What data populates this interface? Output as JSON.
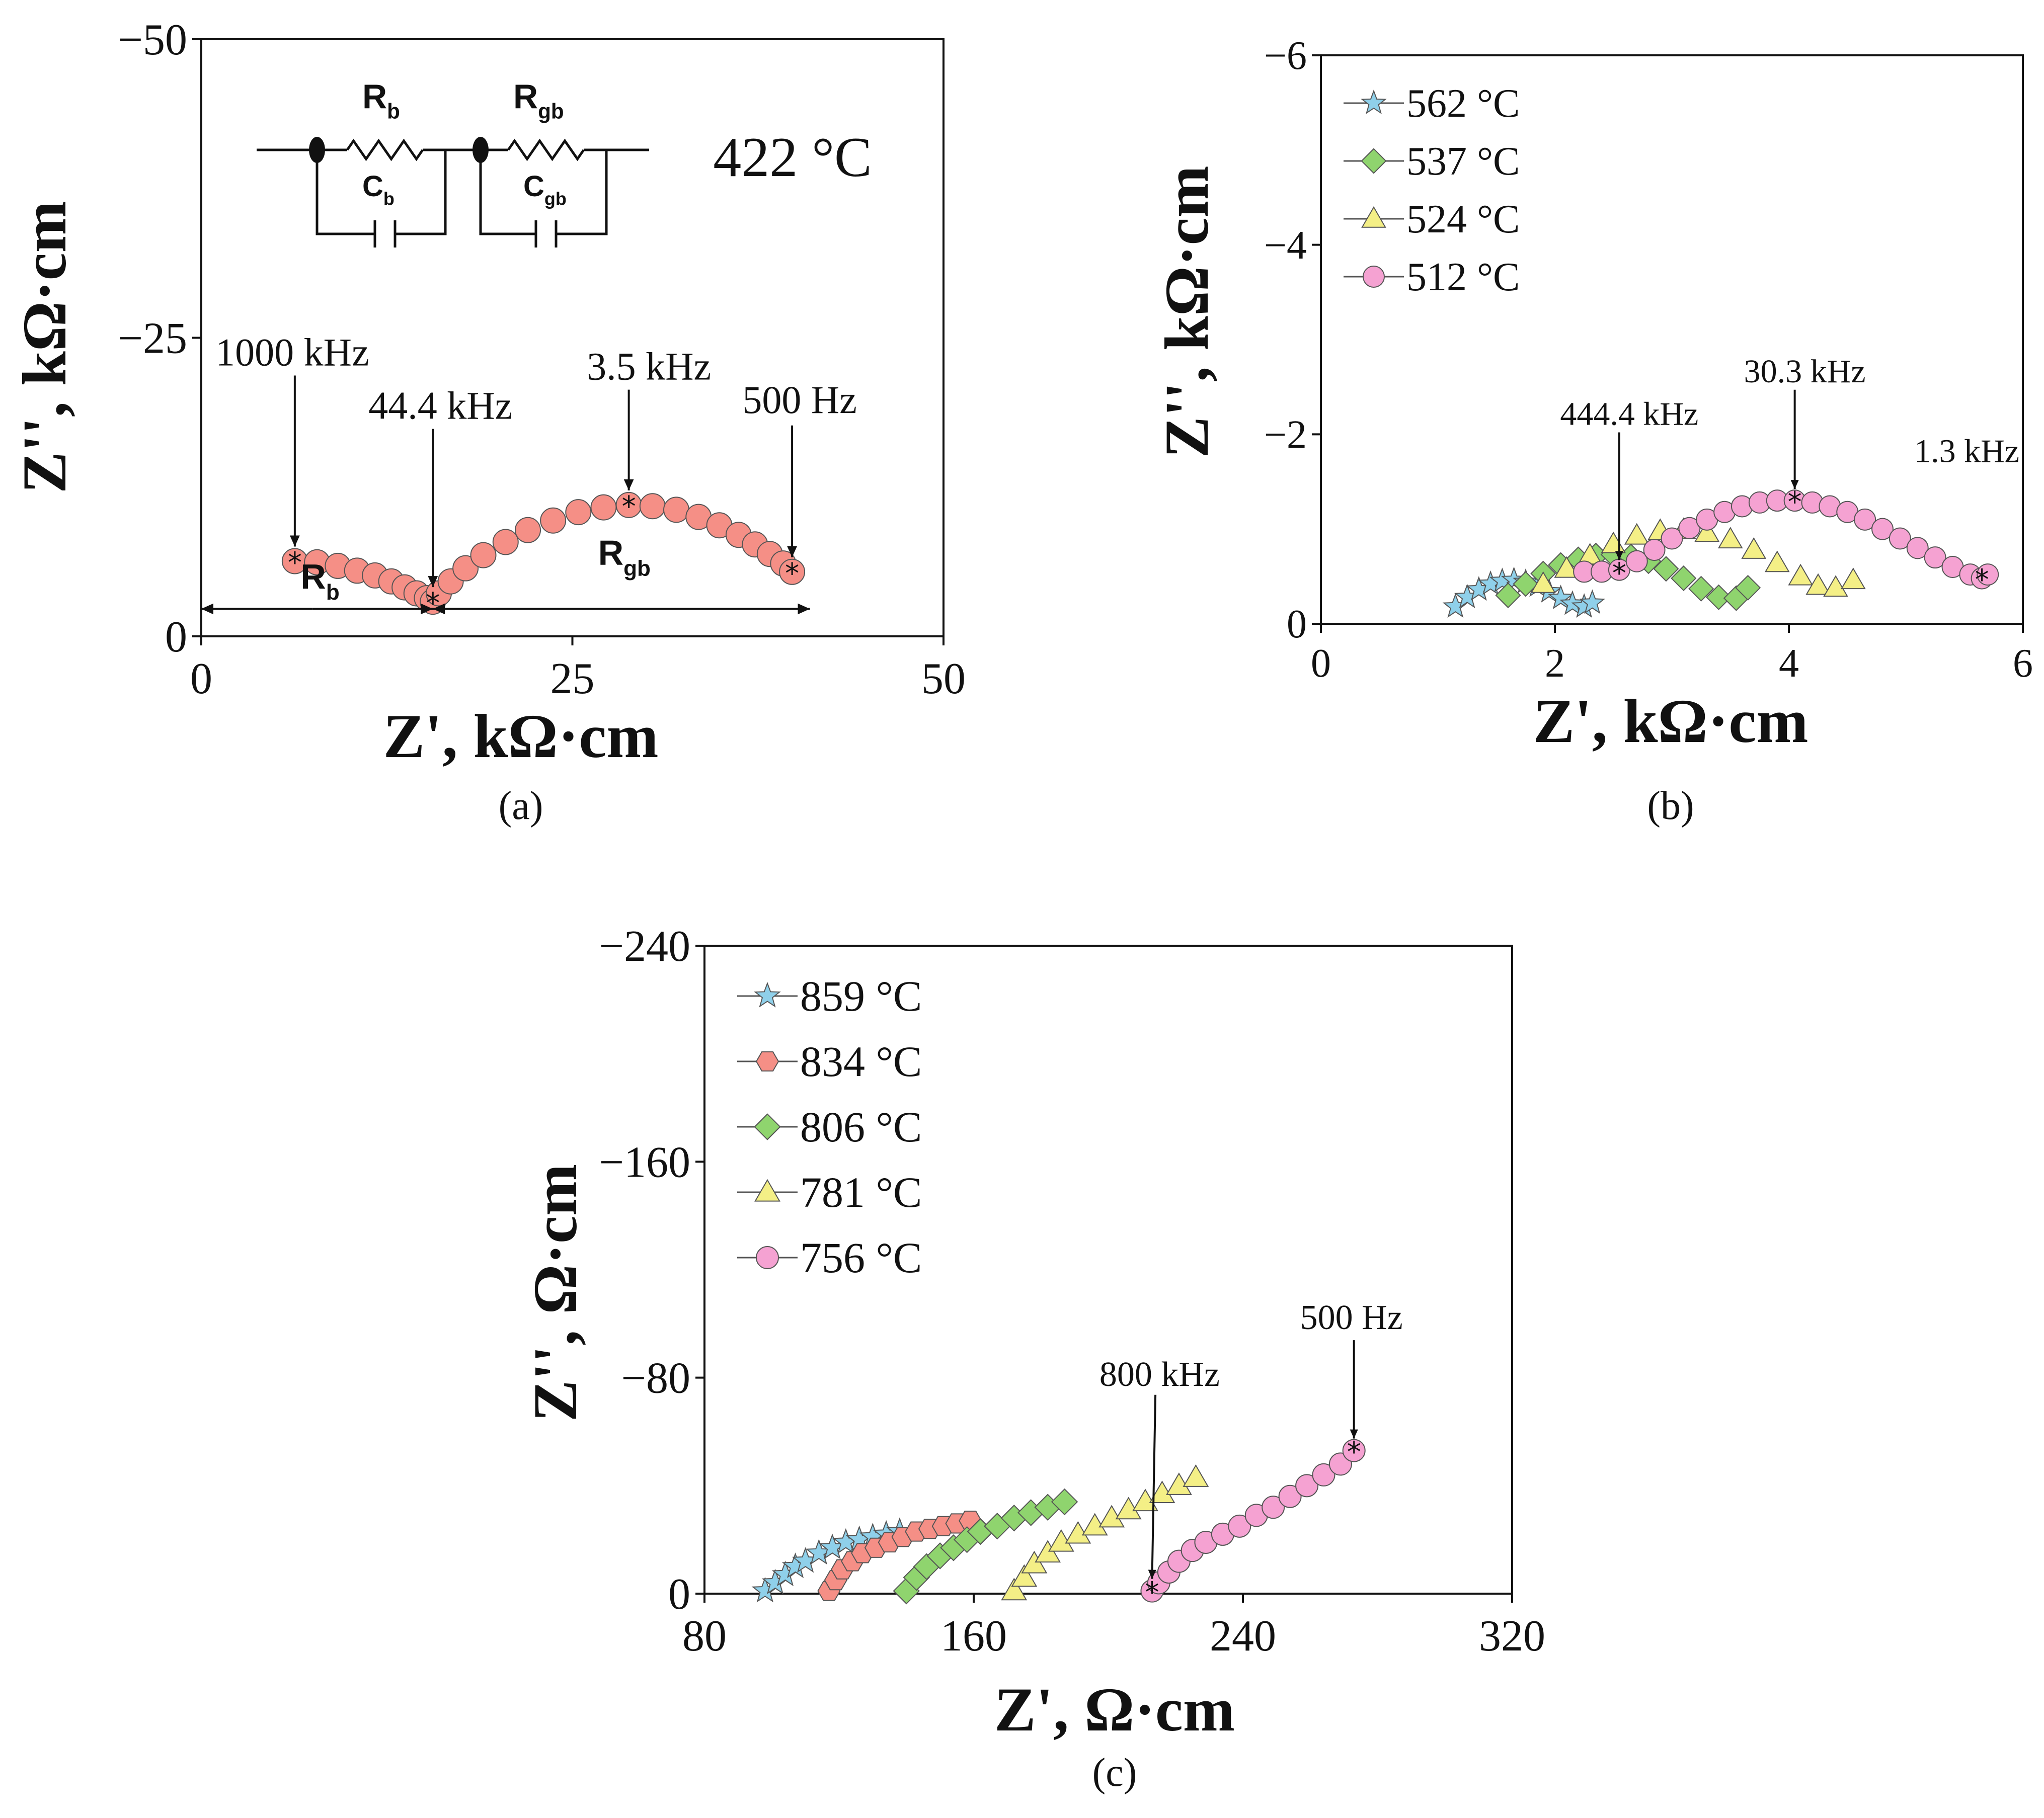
{
  "chart_data": [
    {
      "id": "a",
      "type": "scatter",
      "panel_label": "(a)",
      "xlabel": "Z', kΩ·cm",
      "ylabel": "Z'', kΩ·cm",
      "xlim": [
        0,
        50
      ],
      "ylim": [
        0,
        -50
      ],
      "xticks": [
        "0",
        "25",
        "50"
      ],
      "yticks": [
        "0",
        "−25",
        "−50"
      ],
      "temperature_label": "422 °C",
      "circuit": {
        "r_bulk": "R",
        "r_bulk_sub": "b",
        "c_bulk": "C",
        "c_bulk_sub": "b",
        "r_gb": "R",
        "r_gb_sub": "gb",
        "c_gb": "C",
        "c_gb_sub": "gb"
      },
      "region_labels": [
        {
          "text": "R",
          "sub": "b",
          "x": 8,
          "y": -4
        },
        {
          "text": "R",
          "sub": "gb",
          "x": 28.5,
          "y": -6
        }
      ],
      "series": [
        {
          "name": "422 °C",
          "color": "#f58f86",
          "marker": "circle",
          "x": [
            6.3,
            7.8,
            9.2,
            10.5,
            11.7,
            12.8,
            13.7,
            14.5,
            15.2,
            15.6,
            16.0,
            16.8,
            17.8,
            19.0,
            20.5,
            22.0,
            23.7,
            25.4,
            27.1,
            28.8,
            30.4,
            32.0,
            33.5,
            34.9,
            36.2,
            37.3,
            38.3,
            39.2,
            39.8
          ],
          "y": [
            -6.3,
            -6.2,
            -5.9,
            -5.5,
            -5.1,
            -4.6,
            -4.1,
            -3.6,
            -3.2,
            -2.9,
            -3.6,
            -4.6,
            -5.7,
            -6.8,
            -7.9,
            -8.9,
            -9.7,
            -10.4,
            -10.8,
            -11.0,
            -10.9,
            -10.6,
            -10.0,
            -9.3,
            -8.5,
            -7.7,
            -6.9,
            -6.1,
            -5.4
          ]
        }
      ],
      "annotations": [
        {
          "text": "1000 kHz",
          "x": 6.3,
          "y": -6.3
        },
        {
          "text": "44.4 kHz",
          "x": 15.6,
          "y": -2.9
        },
        {
          "text": "3.5 kHz",
          "x": 28.8,
          "y": -11.0
        },
        {
          "text": "500 Hz",
          "x": 39.8,
          "y": -5.4
        }
      ]
    },
    {
      "id": "b",
      "type": "scatter",
      "panel_label": "(b)",
      "xlabel": "Z', kΩ·cm",
      "ylabel": "Z'', kΩ·cm",
      "xlim": [
        0,
        6
      ],
      "ylim": [
        0,
        -6
      ],
      "xticks": [
        "0",
        "2",
        "4",
        "6"
      ],
      "yticks": [
        "0",
        "−2",
        "−4",
        "−6"
      ],
      "series": [
        {
          "name": "562 °C",
          "color": "#8fd0ea",
          "marker": "star",
          "x": [
            1.15,
            1.25,
            1.35,
            1.45,
            1.55,
            1.65,
            1.75,
            1.85,
            1.95,
            2.05,
            2.15,
            2.25,
            2.32
          ],
          "y": [
            -0.18,
            -0.28,
            -0.36,
            -0.42,
            -0.45,
            -0.46,
            -0.44,
            -0.4,
            -0.34,
            -0.27,
            -0.21,
            -0.18,
            -0.22
          ]
        },
        {
          "name": "537 °C",
          "color": "#8fd46e",
          "marker": "diamond",
          "x": [
            1.6,
            1.75,
            1.9,
            2.05,
            2.2,
            2.35,
            2.5,
            2.65,
            2.8,
            2.95,
            3.1,
            3.25,
            3.4,
            3.55,
            3.65
          ],
          "y": [
            -0.3,
            -0.42,
            -0.53,
            -0.62,
            -0.68,
            -0.72,
            -0.73,
            -0.71,
            -0.66,
            -0.58,
            -0.48,
            -0.37,
            -0.28,
            -0.27,
            -0.38
          ]
        },
        {
          "name": "524 °C",
          "color": "#f4ef86",
          "marker": "triangle",
          "x": [
            1.9,
            2.1,
            2.3,
            2.5,
            2.7,
            2.9,
            3.1,
            3.3,
            3.5,
            3.7,
            3.9,
            4.1,
            4.25,
            4.4,
            4.55
          ],
          "y": [
            -0.42,
            -0.58,
            -0.72,
            -0.84,
            -0.93,
            -0.98,
            -0.99,
            -0.96,
            -0.89,
            -0.78,
            -0.64,
            -0.5,
            -0.4,
            -0.38,
            -0.46
          ]
        },
        {
          "name": "512 °C",
          "color": "#f5a2d2",
          "marker": "circle",
          "x": [
            2.25,
            2.4,
            2.55,
            2.7,
            2.85,
            3.0,
            3.15,
            3.3,
            3.45,
            3.6,
            3.75,
            3.9,
            4.05,
            4.2,
            4.35,
            4.5,
            4.65,
            4.8,
            4.95,
            5.1,
            5.25,
            5.4,
            5.55,
            5.65,
            5.7
          ],
          "y": [
            -0.55,
            -0.55,
            -0.57,
            -0.66,
            -0.78,
            -0.9,
            -1.01,
            -1.1,
            -1.18,
            -1.24,
            -1.28,
            -1.3,
            -1.3,
            -1.28,
            -1.24,
            -1.18,
            -1.1,
            -1.0,
            -0.9,
            -0.8,
            -0.7,
            -0.6,
            -0.52,
            -0.48,
            -0.52
          ]
        }
      ],
      "annotations": [
        {
          "text": "444.4 kHz",
          "x": 2.55,
          "y": -0.55
        },
        {
          "text": "30.3 kHz",
          "x": 4.05,
          "y": -1.3
        },
        {
          "text": "1.3 kHz",
          "x": 5.65,
          "y": -0.48
        }
      ]
    },
    {
      "id": "c",
      "type": "scatter",
      "panel_label": "(c)",
      "xlabel": "Z', Ω·cm",
      "ylabel": "Z'', Ω·cm",
      "xlim": [
        80,
        320
      ],
      "ylim": [
        0,
        -240
      ],
      "xticks": [
        "80",
        "160",
        "240",
        "320"
      ],
      "yticks": [
        "0",
        "−80",
        "−160",
        "−240"
      ],
      "series": [
        {
          "name": "859 °C",
          "color": "#8fd0ea",
          "marker": "star",
          "x": [
            98,
            101,
            104,
            107,
            110,
            114,
            118,
            122,
            126,
            130,
            134,
            138
          ],
          "y": [
            -1,
            -4,
            -7,
            -10,
            -12,
            -15,
            -17,
            -19,
            -20,
            -21,
            -22,
            -23
          ]
        },
        {
          "name": "834 °C",
          "color": "#f58f86",
          "marker": "hexagon",
          "x": [
            117,
            119,
            121,
            124,
            127,
            131,
            135,
            139,
            143,
            147,
            151,
            155,
            159
          ],
          "y": [
            -1,
            -5,
            -9,
            -12,
            -15,
            -17,
            -19,
            -21,
            -23,
            -24,
            -25,
            -26,
            -27
          ]
        },
        {
          "name": "806 °C",
          "color": "#8fd46e",
          "marker": "diamond",
          "x": [
            140,
            143,
            146,
            150,
            154,
            158,
            162,
            167,
            172,
            177,
            182,
            187
          ],
          "y": [
            -1,
            -6,
            -10,
            -14,
            -17,
            -20,
            -23,
            -25,
            -28,
            -30,
            -32,
            -34
          ]
        },
        {
          "name": "781 °C",
          "color": "#f4ef86",
          "marker": "triangle",
          "x": [
            172,
            175,
            178,
            182,
            186,
            191,
            196,
            201,
            206,
            211,
            216,
            221,
            226
          ],
          "y": [
            -1,
            -6,
            -11,
            -15,
            -19,
            -22,
            -25,
            -28,
            -31,
            -34,
            -37,
            -40,
            -43
          ]
        },
        {
          "name": "756 °C",
          "color": "#f5a2d2",
          "marker": "circle",
          "x": [
            213,
            215,
            218,
            221,
            225,
            229,
            234,
            239,
            244,
            249,
            254,
            259,
            264,
            269,
            273
          ],
          "y": [
            -1,
            -4,
            -8,
            -12,
            -16,
            -19,
            -22,
            -25,
            -29,
            -32,
            -36,
            -40,
            -44,
            -48,
            -53
          ]
        }
      ],
      "annotations": [
        {
          "text": "800 kHz",
          "x": 213,
          "y": -1
        },
        {
          "text": "500 Hz",
          "x": 273,
          "y": -53
        }
      ]
    }
  ]
}
